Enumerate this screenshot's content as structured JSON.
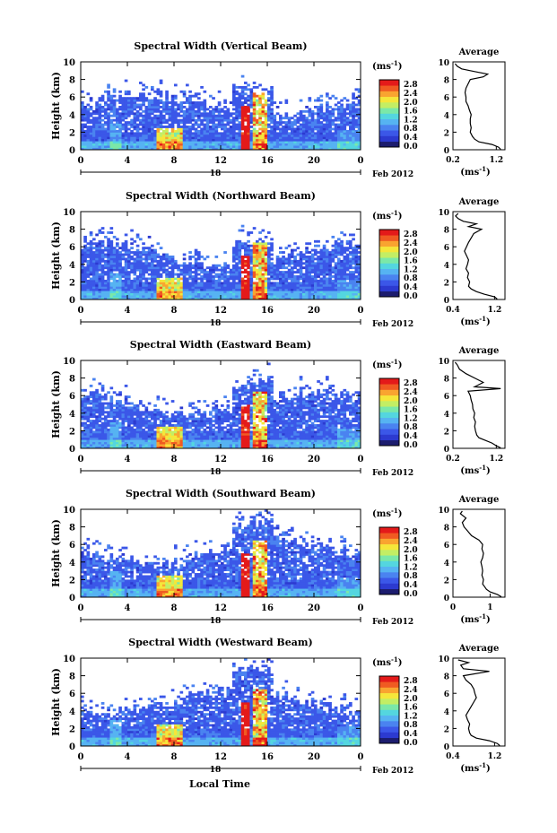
{
  "chart_data": {
    "type": "heatmap",
    "common": {
      "xlabel": "Local Time",
      "ylabel": "Height (km)",
      "x_ticks": [
        "0",
        "4",
        "8",
        "12",
        "16",
        "20",
        "0"
      ],
      "xlim": [
        0,
        24
      ],
      "y_ticks": [
        "0",
        "2",
        "4",
        "6",
        "8",
        "10"
      ],
      "ylim": [
        0,
        10
      ],
      "date_day": "18",
      "date_month_year": "Feb 2012",
      "colorbar_unit": "(ms",
      "colorbar_unit_exp": "-1",
      "colorbar_ticks": [
        "0.0",
        "0.4",
        "0.8",
        "1.2",
        "1.6",
        "2.0",
        "2.4",
        "2.8"
      ],
      "colorbar_range": [
        0,
        2.8
      ],
      "average_title": "Average",
      "average_xlabel": "(ms",
      "average_xlabel_exp": "-1",
      "colors": [
        "#1c1c6e",
        "#2c3ad0",
        "#3b57e8",
        "#4a83f0",
        "#56b3f2",
        "#54d6df",
        "#7be8a8",
        "#c3ee64",
        "#f5e63a",
        "#f9a430",
        "#f05a22",
        "#e41a1a"
      ]
    },
    "panels": [
      {
        "title": "Spectral Width (Vertical Beam)",
        "avg_ticks": [
          "0.2",
          "1.2"
        ],
        "avg_xlim": [
          0.2,
          1.4
        ],
        "avg_profile": [
          [
            0.05,
            1.3
          ],
          [
            0.3,
            1.25
          ],
          [
            0.6,
            1.1
          ],
          [
            0.9,
            0.8
          ],
          [
            1.2,
            0.7
          ],
          [
            1.5,
            0.65
          ],
          [
            2.0,
            0.6
          ],
          [
            2.5,
            0.62
          ],
          [
            3.0,
            0.6
          ],
          [
            3.5,
            0.6
          ],
          [
            4.0,
            0.62
          ],
          [
            4.5,
            0.58
          ],
          [
            5.0,
            0.55
          ],
          [
            5.5,
            0.5
          ],
          [
            6.0,
            0.5
          ],
          [
            6.5,
            0.48
          ],
          [
            7.0,
            0.5
          ],
          [
            7.5,
            0.55
          ],
          [
            8.0,
            0.6
          ],
          [
            8.3,
            0.9
          ],
          [
            8.6,
            1.0
          ],
          [
            8.9,
            0.7
          ],
          [
            9.2,
            0.4
          ],
          [
            9.5,
            0.3
          ],
          [
            9.8,
            0.25
          ]
        ]
      },
      {
        "title": "Spectral Width (Northward Beam)",
        "avg_ticks": [
          "0.4",
          "1.2"
        ],
        "avg_xlim": [
          0.4,
          1.4
        ],
        "avg_profile": [
          [
            0.05,
            1.25
          ],
          [
            0.3,
            1.2
          ],
          [
            0.6,
            1.0
          ],
          [
            0.9,
            0.85
          ],
          [
            1.2,
            0.75
          ],
          [
            1.5,
            0.7
          ],
          [
            2.0,
            0.72
          ],
          [
            2.5,
            0.68
          ],
          [
            3.0,
            0.7
          ],
          [
            3.5,
            0.65
          ],
          [
            4.0,
            0.68
          ],
          [
            4.5,
            0.7
          ],
          [
            5.0,
            0.66
          ],
          [
            5.5,
            0.62
          ],
          [
            6.0,
            0.66
          ],
          [
            6.5,
            0.7
          ],
          [
            7.0,
            0.75
          ],
          [
            7.5,
            0.8
          ],
          [
            8.0,
            0.95
          ],
          [
            8.3,
            0.7
          ],
          [
            8.6,
            0.85
          ],
          [
            8.9,
            0.6
          ],
          [
            9.2,
            0.5
          ],
          [
            9.5,
            0.45
          ],
          [
            9.8,
            0.5
          ]
        ]
      },
      {
        "title": "Spectral Width (Eastward Beam)",
        "avg_ticks": [
          "0.2",
          "1.2"
        ],
        "avg_xlim": [
          0.2,
          1.4
        ],
        "avg_profile": [
          [
            0.05,
            1.3
          ],
          [
            0.3,
            1.2
          ],
          [
            0.6,
            1.1
          ],
          [
            0.9,
            0.95
          ],
          [
            1.2,
            0.8
          ],
          [
            1.5,
            0.75
          ],
          [
            2.0,
            0.72
          ],
          [
            2.5,
            0.7
          ],
          [
            3.0,
            0.72
          ],
          [
            3.5,
            0.68
          ],
          [
            4.0,
            0.7
          ],
          [
            4.5,
            0.66
          ],
          [
            5.0,
            0.65
          ],
          [
            5.5,
            0.62
          ],
          [
            6.0,
            0.6
          ],
          [
            6.5,
            0.55
          ],
          [
            6.8,
            1.3
          ],
          [
            7.0,
            0.7
          ],
          [
            7.5,
            0.9
          ],
          [
            8.0,
            0.7
          ],
          [
            8.5,
            0.5
          ],
          [
            9.0,
            0.35
          ],
          [
            9.5,
            0.3
          ],
          [
            9.8,
            0.25
          ]
        ]
      },
      {
        "title": "Spectral Width (Southward Beam)",
        "avg_ticks": [
          "0",
          "1"
        ],
        "avg_xlim": [
          0,
          1.4
        ],
        "avg_profile": [
          [
            0.05,
            1.3
          ],
          [
            0.3,
            1.2
          ],
          [
            0.6,
            1.0
          ],
          [
            0.9,
            0.9
          ],
          [
            1.2,
            0.85
          ],
          [
            1.5,
            0.8
          ],
          [
            2.0,
            0.82
          ],
          [
            2.5,
            0.78
          ],
          [
            3.0,
            0.8
          ],
          [
            3.5,
            0.78
          ],
          [
            4.0,
            0.75
          ],
          [
            4.5,
            0.8
          ],
          [
            5.0,
            0.82
          ],
          [
            5.5,
            0.78
          ],
          [
            6.0,
            0.8
          ],
          [
            6.5,
            0.7
          ],
          [
            7.0,
            0.5
          ],
          [
            7.5,
            0.4
          ],
          [
            8.0,
            0.3
          ],
          [
            8.5,
            0.25
          ],
          [
            9.0,
            0.35
          ],
          [
            9.5,
            0.2
          ],
          [
            9.8,
            0.25
          ]
        ]
      },
      {
        "title": "Spectral Width (Westward Beam)",
        "avg_ticks": [
          "0.4",
          "1.2"
        ],
        "avg_xlim": [
          0.4,
          1.4
        ],
        "avg_profile": [
          [
            0.05,
            1.3
          ],
          [
            0.3,
            1.25
          ],
          [
            0.6,
            1.1
          ],
          [
            0.9,
            0.85
          ],
          [
            1.2,
            0.75
          ],
          [
            1.5,
            0.72
          ],
          [
            2.0,
            0.7
          ],
          [
            2.5,
            0.72
          ],
          [
            3.0,
            0.68
          ],
          [
            3.5,
            0.65
          ],
          [
            4.0,
            0.7
          ],
          [
            4.5,
            0.75
          ],
          [
            5.0,
            0.8
          ],
          [
            5.5,
            0.85
          ],
          [
            6.0,
            0.82
          ],
          [
            6.5,
            0.8
          ],
          [
            7.0,
            0.75
          ],
          [
            7.5,
            0.65
          ],
          [
            8.0,
            0.6
          ],
          [
            8.5,
            1.1
          ],
          [
            8.8,
            0.6
          ],
          [
            9.2,
            0.55
          ],
          [
            9.5,
            0.7
          ],
          [
            9.8,
            0.5
          ]
        ]
      }
    ]
  }
}
